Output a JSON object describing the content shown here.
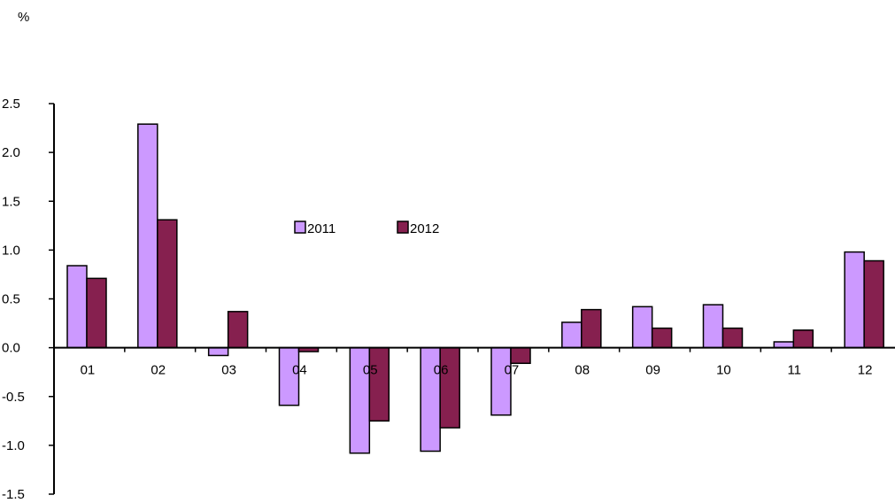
{
  "chart_data": {
    "type": "bar",
    "unit_label": "%",
    "categories": [
      "01",
      "02",
      "03",
      "04",
      "05",
      "06",
      "07",
      "08",
      "09",
      "10",
      "11",
      "12"
    ],
    "series": [
      {
        "name": "2011",
        "color": "#cc99ff",
        "values": [
          0.84,
          2.29,
          -0.08,
          -0.59,
          -1.08,
          -1.06,
          -0.69,
          0.26,
          0.42,
          0.44,
          0.06,
          0.98
        ]
      },
      {
        "name": "2012",
        "color": "#86204f",
        "values": [
          0.71,
          1.31,
          0.37,
          -0.04,
          -0.75,
          -0.82,
          -0.16,
          0.39,
          0.2,
          0.2,
          0.18,
          0.89
        ]
      }
    ],
    "ylim": [
      -1.5,
      2.5
    ],
    "yticks": [
      "2.5",
      "2.0",
      "1.5",
      "1.0",
      "0.5",
      "0.0",
      "-0.5",
      "-1.0",
      "-1.5"
    ],
    "grid": false,
    "legend_position": "center"
  }
}
